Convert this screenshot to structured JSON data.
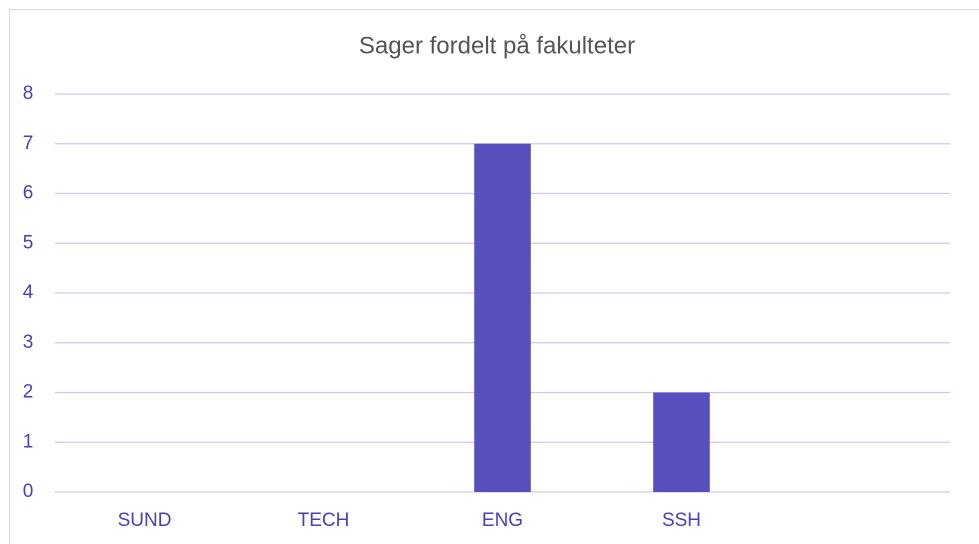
{
  "chart_data": {
    "type": "bar",
    "title": "Sager fordelt på fakulteter",
    "categories": [
      "SUND",
      "TECH",
      "ENG",
      "SSH",
      null
    ],
    "values": [
      0,
      0,
      7,
      2,
      0
    ],
    "color": "#584fbf",
    "ylim": [
      0,
      8
    ],
    "yticks": [
      0,
      1,
      2,
      3,
      4,
      5,
      6,
      7,
      8
    ],
    "grid": true
  }
}
